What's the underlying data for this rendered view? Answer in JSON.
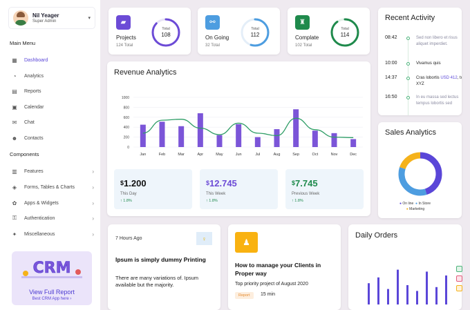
{
  "profile": {
    "name": "Nil Yeager",
    "role": "Super Admin"
  },
  "sidebar": {
    "main_menu_title": "Main Menu",
    "main_items": [
      {
        "label": "Dashboard",
        "icon": "dashboard-icon",
        "active": true
      },
      {
        "label": "Analytics",
        "icon": "analytics-icon"
      },
      {
        "label": "Reports",
        "icon": "reports-icon"
      },
      {
        "label": "Calendar",
        "icon": "calendar-icon"
      },
      {
        "label": "Chat",
        "icon": "chat-icon"
      },
      {
        "label": "Contacts",
        "icon": "contacts-icon"
      }
    ],
    "components_title": "Components",
    "component_items": [
      {
        "label": "Features",
        "icon": "features-icon"
      },
      {
        "label": "Forms, Tables & Charts",
        "icon": "forms-icon"
      },
      {
        "label": "Apps & Widgets",
        "icon": "apps-icon"
      },
      {
        "label": "Authentication",
        "icon": "lock-icon"
      },
      {
        "label": "Miscellaneous",
        "icon": "misc-icon"
      }
    ],
    "promo": {
      "art_text": "CRM",
      "title": "View Full Report",
      "subtitle": "Best CRM App here ›"
    }
  },
  "stats": [
    {
      "label": "Projects",
      "sub": "124 Total",
      "ring_label": "Total",
      "ring_value": "108",
      "color": "#6c4bd6",
      "icon": "folder-icon",
      "fill": 0.87
    },
    {
      "label": "On Going",
      "sub": "32 Total",
      "ring_label": "Total",
      "ring_value": "112",
      "color": "#4d9de0",
      "icon": "share-icon",
      "fill": 0.55
    },
    {
      "label": "Complate",
      "sub": "102 Total",
      "ring_label": "Total",
      "ring_value": "114",
      "color": "#1f8a4c",
      "icon": "trophy-icon",
      "fill": 0.9
    }
  ],
  "revenue": {
    "title": "Revenue Analytics",
    "cards": [
      {
        "currency": "$",
        "value": "1.200",
        "label": "This Day",
        "pct": "↑ 1.8%",
        "color": "#111"
      },
      {
        "currency": "$",
        "value": "12.745",
        "label": "This Week",
        "pct": "↑ 1.8%",
        "color": "#6c4bd6"
      },
      {
        "currency": "$",
        "value": "7.745",
        "label": "Previous Week",
        "pct": "↑ 1.8%",
        "color": "#1f8a4c"
      }
    ]
  },
  "chart_data": {
    "type": "bar",
    "categories": [
      "Jan",
      "Feb",
      "Mar",
      "Apr",
      "May",
      "Jun",
      "Jul",
      "Aug",
      "Sep",
      "Oct",
      "Nov",
      "Dec"
    ],
    "series": [
      {
        "type": "bar",
        "values": [
          450,
          510,
          420,
          680,
          240,
          460,
          200,
          360,
          760,
          330,
          280,
          160
        ]
      },
      {
        "type": "line",
        "values": [
          280,
          540,
          560,
          380,
          250,
          480,
          280,
          230,
          580,
          350,
          200,
          190
        ]
      }
    ],
    "yticks": [
      "0",
      "200",
      "400",
      "600",
      "800",
      "1000"
    ],
    "ylim": [
      0,
      1000
    ],
    "colors": {
      "bar": "#7b55d8",
      "line": "#2e9d66"
    },
    "grid": true
  },
  "recent_activity": {
    "title": "Recent Activity",
    "items": [
      {
        "time": "08:42",
        "text": "Sed non libero et risus aliquet imperdiet.",
        "dark": false
      },
      {
        "time": "10:00",
        "text": "Vivamus quis",
        "dark": true
      },
      {
        "time": "14:37",
        "text": "Cras lobortis ",
        "highlight": "USD 412",
        "after": ", to XYZ",
        "dark": true
      },
      {
        "time": "16:50",
        "text": "In eu massa sed lectus tempus lobortis sed",
        "dark": false
      }
    ]
  },
  "sales": {
    "title": "Sales Analytics",
    "legend": [
      {
        "label": "On line",
        "color": "#5a46d8"
      },
      {
        "label": "In Store",
        "color": "#4d9de0"
      },
      {
        "label": "Marketing",
        "color": "#f5b21b"
      }
    ],
    "slices": [
      0.45,
      0.35,
      0.2
    ]
  },
  "blog": {
    "time": "7 Hours Ago",
    "headline": "Ipsum is simply dummy Printing",
    "body": "There are many variations of. Ipsum available but the majority."
  },
  "notice": {
    "headline": "How to manage your Clients in Proper way",
    "sub": "Top priority project of August 2020",
    "tag": "Report",
    "time": "15 min"
  },
  "daily_orders": {
    "title": "Daily Orders",
    "bars": [
      0.55,
      0.7,
      0.4,
      0.9,
      0.5,
      0.35,
      0.85,
      0.45,
      0.75
    ]
  }
}
